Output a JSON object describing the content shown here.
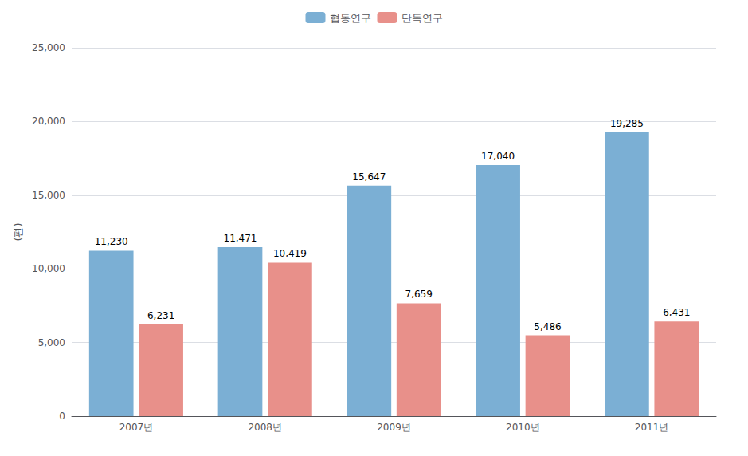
{
  "chart_data": {
    "type": "bar",
    "categories": [
      "2007년",
      "2008년",
      "2009년",
      "2010년",
      "2011년"
    ],
    "series": [
      {
        "name": "협동연구",
        "color": "#7bafd4",
        "values": [
          11230,
          11471,
          15647,
          17040,
          19285
        ],
        "value_labels": [
          "11,230",
          "11,471",
          "15,647",
          "17,040",
          "19,285"
        ]
      },
      {
        "name": "단독연구",
        "color": "#e8908a",
        "values": [
          6231,
          10419,
          7659,
          5486,
          6431
        ],
        "value_labels": [
          "6,231",
          "10,419",
          "7,659",
          "5,486",
          "6,431"
        ]
      }
    ],
    "ylabel": "(편)",
    "ylim": [
      0,
      25000
    ],
    "yticks": [
      0,
      {
        "value": 5000,
        "label": "5,000"
      },
      {
        "value": 10000,
        "label": "10,000"
      },
      {
        "value": 15000,
        "label": "15,000"
      },
      {
        "value": 20000,
        "label": "20,000"
      },
      {
        "value": 25000,
        "label": "25,000"
      }
    ],
    "grid": true,
    "legend": "top",
    "data_labels": true
  }
}
